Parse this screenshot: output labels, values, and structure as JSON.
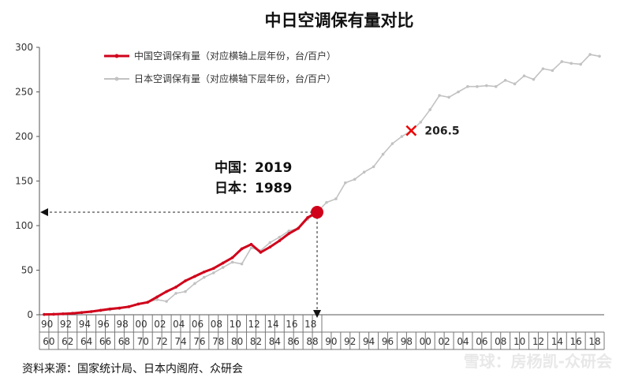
{
  "chart_data": {
    "type": "line",
    "title": "中日空调保有量对比",
    "ylim": [
      0,
      300
    ],
    "yticks": [
      0,
      50,
      100,
      150,
      200,
      250,
      300
    ],
    "x_top_row": [
      "90",
      "92",
      "94",
      "96",
      "98",
      "00",
      "02",
      "04",
      "06",
      "08",
      "10",
      "12",
      "14",
      "16",
      "18"
    ],
    "x_bottom_row": [
      "60",
      "62",
      "64",
      "66",
      "68",
      "70",
      "72",
      "74",
      "76",
      "78",
      "80",
      "82",
      "84",
      "86",
      "88",
      "90",
      "92",
      "94",
      "96",
      "98",
      "00",
      "02",
      "04",
      "06",
      "08",
      "10",
      "12",
      "14",
      "16",
      "18"
    ],
    "series": [
      {
        "name": "中国空调保有量（对应横轴上层年份，台/百户）",
        "color": "#d0021b",
        "x": [
          1990,
          1991,
          1992,
          1993,
          1994,
          1995,
          1996,
          1997,
          1998,
          1999,
          2000,
          2001,
          2002,
          2003,
          2004,
          2005,
          2006,
          2007,
          2008,
          2009,
          2010,
          2011,
          2012,
          2013,
          2014,
          2015,
          2016,
          2017,
          2018,
          2019
        ],
        "values": [
          0.3,
          0.5,
          1.0,
          1.5,
          2.5,
          3.5,
          5.0,
          6.5,
          7.5,
          9.0,
          12.0,
          14.0,
          20.0,
          26.0,
          31.0,
          38.0,
          43.0,
          48.0,
          52.0,
          58.0,
          64.0,
          74.0,
          79.0,
          70.0,
          76.0,
          83.0,
          91.0,
          97.0,
          109.0,
          115.0
        ]
      },
      {
        "name": "日本空调保有量（对应横轴下层年份，台/百户）",
        "color": "#c2c2c2",
        "x": [
          1960,
          1961,
          1962,
          1963,
          1964,
          1965,
          1966,
          1967,
          1968,
          1969,
          1970,
          1971,
          1972,
          1973,
          1974,
          1975,
          1976,
          1977,
          1978,
          1979,
          1980,
          1981,
          1982,
          1983,
          1984,
          1985,
          1986,
          1987,
          1988,
          1989,
          1990,
          1991,
          1992,
          1993,
          1994,
          1995,
          1996,
          1997,
          1998,
          1999,
          2000,
          2001,
          2002,
          2003,
          2004,
          2005,
          2006,
          2007,
          2008,
          2009,
          2010,
          2011,
          2012,
          2013,
          2014,
          2015,
          2016,
          2017,
          2018,
          2019
        ],
        "values": [
          0.5,
          0.8,
          1.2,
          1.8,
          2.5,
          3.5,
          4.5,
          5.5,
          7.0,
          9.0,
          12.0,
          14.0,
          17.0,
          15.0,
          24.0,
          26.0,
          35.0,
          42.0,
          47.0,
          53.0,
          59.0,
          57.0,
          75.0,
          72.0,
          81.0,
          87.0,
          94.0,
          97.0,
          107.0,
          115.0,
          126.0,
          130.0,
          148.0,
          152.0,
          160.0,
          166.0,
          180.0,
          192.0,
          200.0,
          206.5,
          216.0,
          230.0,
          246.0,
          244.0,
          250.0,
          256.0,
          256.0,
          257.0,
          256.0,
          263.0,
          259.0,
          268.0,
          264.0,
          276.0,
          274.0,
          284.0,
          282.0,
          281.0,
          292.0,
          290.0
        ]
      }
    ],
    "callout_lines": [
      "中国：2019",
      "日本：1989"
    ],
    "highlight_value": 115,
    "marked_point": {
      "x": 1999,
      "y": 206.5,
      "label": "206.5"
    }
  },
  "source_text": "资料来源：国家统计局、日本内阁府、众研会",
  "watermark": "雪球：房杨凯-众研会",
  "colors": {
    "china": "#d0021b",
    "japan": "#c2c2c2",
    "axis": "#555555"
  }
}
